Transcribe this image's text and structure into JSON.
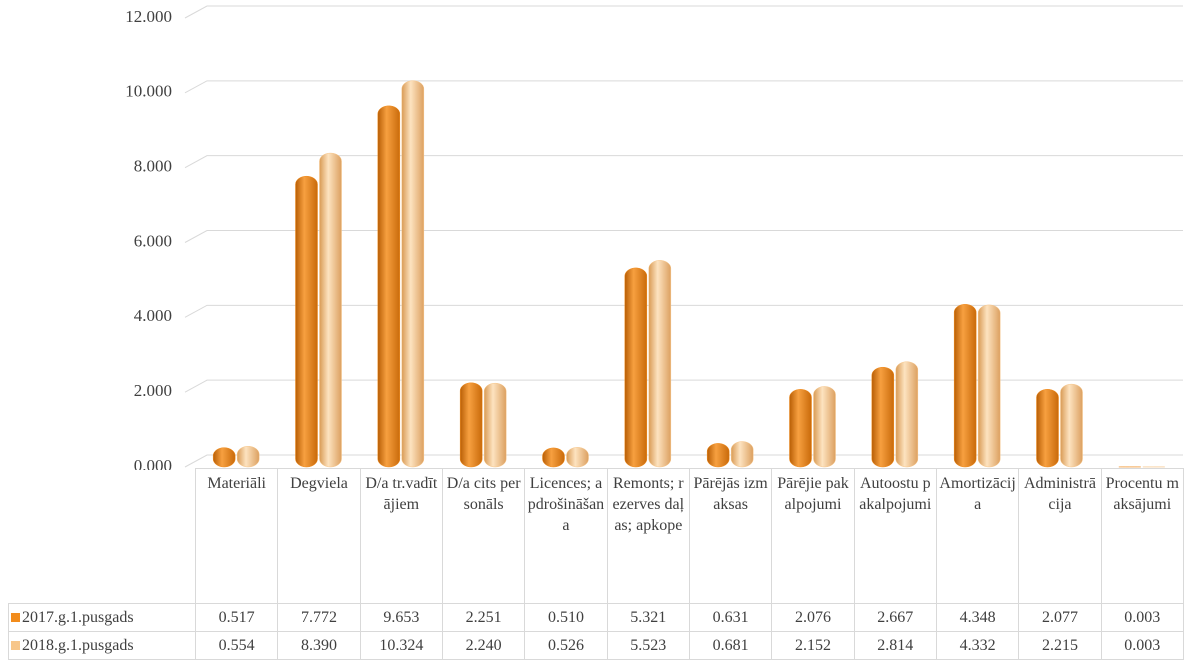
{
  "chart_data": {
    "type": "bar",
    "categories": [
      "Materiāli",
      "Degviela",
      "D/a tr.vadītājiem",
      "D/a cits personāls",
      "Licences; apdrošināšana",
      "Remonts; rezerves daļas; apkope",
      "Pārējās izmaksas",
      "Pārējie pakalpojumi",
      "Autoostu pakalpojumi",
      "Amortizācija",
      "Administrācija",
      "Procentu maksājumi"
    ],
    "series": [
      {
        "name": "2017.g.1.pusgads",
        "color": "#f28c1c",
        "values": [
          0.517,
          7.772,
          9.653,
          2.251,
          0.51,
          5.321,
          0.631,
          2.076,
          2.667,
          4.348,
          2.077,
          0.003
        ],
        "value_labels": [
          "0.517",
          "7.772",
          "9.653",
          "2.251",
          "0.510",
          "5.321",
          "0.631",
          "2.076",
          "2.667",
          "4.348",
          "2.077",
          "0.003"
        ]
      },
      {
        "name": "2018.g.1.pusgads",
        "color": "#f7c68a",
        "values": [
          0.554,
          8.39,
          10.324,
          2.24,
          0.526,
          5.523,
          0.681,
          2.152,
          2.814,
          4.332,
          2.215,
          0.003
        ],
        "value_labels": [
          "0.554",
          "8.390",
          "10.324",
          "2.240",
          "0.526",
          "5.523",
          "0.681",
          "2.152",
          "2.814",
          "4.332",
          "2.215",
          "0.003"
        ]
      }
    ],
    "ylim": [
      0,
      12
    ],
    "yticks": [
      {
        "value": 0,
        "label": "0.000"
      },
      {
        "value": 2,
        "label": "2.000"
      },
      {
        "value": 4,
        "label": "4.000"
      },
      {
        "value": 6,
        "label": "6.000"
      },
      {
        "value": 8,
        "label": "8.000"
      },
      {
        "value": 10,
        "label": "10.000"
      },
      {
        "value": 12,
        "label": "12.000"
      }
    ],
    "grid": true
  }
}
